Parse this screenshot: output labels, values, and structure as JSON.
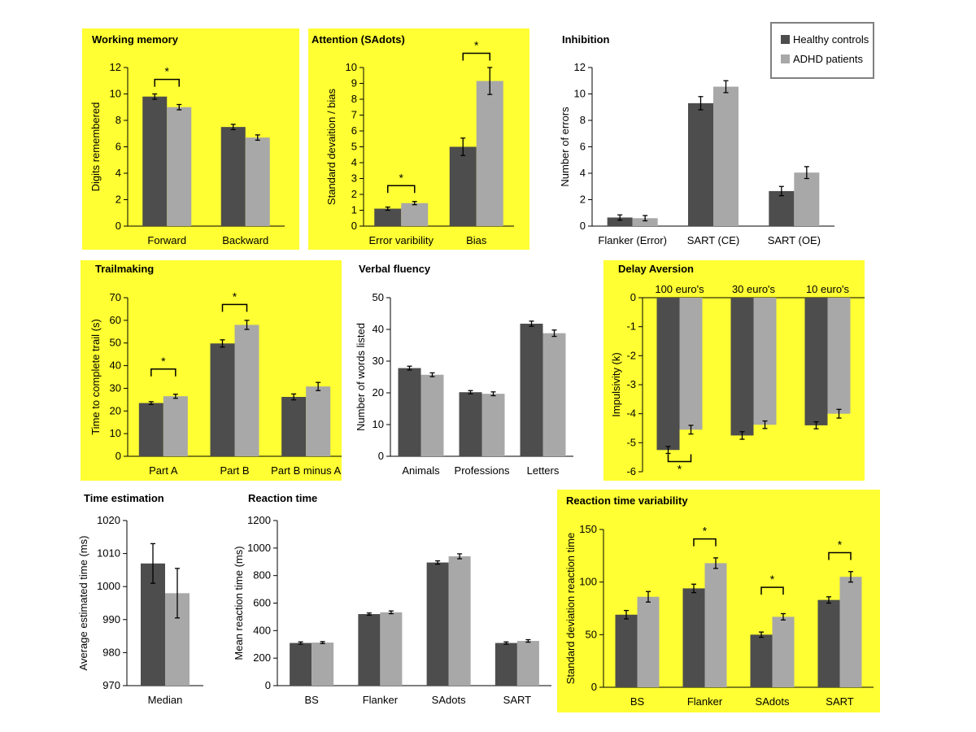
{
  "colors": {
    "healthy": "#4d4d4d",
    "adhd": "#a8a8a8",
    "highlight": "#ffff33",
    "axis": "#000000"
  },
  "legend": {
    "items": [
      {
        "label": "Healthy controls",
        "color": "#4d4d4d"
      },
      {
        "label": "ADHD patients",
        "color": "#a8a8a8"
      }
    ]
  },
  "chart_data": [
    {
      "id": "working-memory",
      "type": "bar",
      "title": "Working memory",
      "highlighted": true,
      "xlabel": "",
      "ylabel": "Digits remembered",
      "ylim": [
        0,
        12
      ],
      "yticks": [
        0,
        2,
        4,
        6,
        8,
        10,
        12
      ],
      "categories": [
        "Forward",
        "Backward"
      ],
      "series": [
        {
          "name": "Healthy controls",
          "values": [
            9.8,
            7.5
          ],
          "errors": [
            0.2,
            0.2
          ]
        },
        {
          "name": "ADHD patients",
          "values": [
            9.0,
            6.7
          ],
          "errors": [
            0.2,
            0.2
          ]
        }
      ],
      "significance": [
        {
          "category": 0,
          "label": "*",
          "y": 11.1
        }
      ]
    },
    {
      "id": "attention",
      "type": "bar",
      "title": "Attention (SAdots)",
      "highlighted": true,
      "xlabel": "",
      "ylabel": "Standard devaition / bias",
      "ylim": [
        0,
        10
      ],
      "yticks": [
        0,
        1,
        2,
        3,
        4,
        5,
        6,
        7,
        8,
        9,
        10
      ],
      "categories": [
        "Error varibility",
        "Bias"
      ],
      "series": [
        {
          "name": "Healthy controls",
          "values": [
            1.1,
            5.0
          ],
          "errors": [
            0.1,
            0.55
          ]
        },
        {
          "name": "ADHD patients",
          "values": [
            1.45,
            9.15
          ],
          "errors": [
            0.1,
            0.85
          ]
        }
      ],
      "significance": [
        {
          "category": 0,
          "label": "*",
          "y": 2.55
        },
        {
          "category": 1,
          "label": "*",
          "y": 10.9
        }
      ]
    },
    {
      "id": "inhibition",
      "type": "bar",
      "title": "Inhibition",
      "highlighted": false,
      "xlabel": "",
      "ylabel": "Number of errors",
      "ylim": [
        0,
        12
      ],
      "yticks": [
        0,
        2,
        4,
        6,
        8,
        10,
        12
      ],
      "categories": [
        "Flanker (Error)",
        "SART (CE)",
        "SART (OE)"
      ],
      "series": [
        {
          "name": "Healthy controls",
          "values": [
            0.65,
            9.3,
            2.65
          ],
          "errors": [
            0.2,
            0.5,
            0.35
          ]
        },
        {
          "name": "ADHD patients",
          "values": [
            0.6,
            10.55,
            4.05
          ],
          "errors": [
            0.2,
            0.45,
            0.45
          ]
        }
      ],
      "significance": []
    },
    {
      "id": "trailmaking",
      "type": "bar",
      "title": "Trailmaking",
      "highlighted": true,
      "xlabel": "",
      "ylabel": "Time to complete trail (s)",
      "ylim": [
        0,
        70
      ],
      "yticks": [
        0,
        10,
        20,
        30,
        40,
        50,
        60,
        70
      ],
      "categories": [
        "Part A",
        "Part B",
        "Part B  minus A"
      ],
      "series": [
        {
          "name": "Healthy controls",
          "values": [
            23.5,
            49.8,
            26.2
          ],
          "errors": [
            0.6,
            1.6,
            1.3
          ]
        },
        {
          "name": "ADHD patients",
          "values": [
            26.5,
            58.0,
            30.8
          ],
          "errors": [
            0.9,
            2.0,
            1.8
          ]
        }
      ],
      "significance": [
        {
          "category": 0,
          "label": "*",
          "y": 38.5
        },
        {
          "category": 1,
          "label": "*",
          "y": 67
        }
      ]
    },
    {
      "id": "verbal-fluency",
      "type": "bar",
      "title": "Verbal fluency",
      "highlighted": false,
      "xlabel": "",
      "ylabel": "Number of words listed",
      "ylim": [
        0,
        50
      ],
      "yticks": [
        0,
        10,
        20,
        30,
        40,
        50
      ],
      "categories": [
        "Animals",
        "Professions",
        "Letters"
      ],
      "series": [
        {
          "name": "Healthy controls",
          "values": [
            27.8,
            20.2,
            41.8
          ],
          "errors": [
            0.6,
            0.5,
            0.8
          ]
        },
        {
          "name": "ADHD patients",
          "values": [
            25.7,
            19.7,
            38.8
          ],
          "errors": [
            0.6,
            0.6,
            1.0
          ]
        }
      ],
      "significance": []
    },
    {
      "id": "delay-aversion",
      "type": "bar",
      "title": "Delay Aversion",
      "highlighted": true,
      "xlabel": "",
      "ylabel": "Impulsivity (k)",
      "ylim": [
        -6,
        0
      ],
      "yticks": [
        0,
        -1,
        -2,
        -3,
        -4,
        -5,
        -6
      ],
      "categories": [
        "100 euro's",
        "30 euro's",
        "10 euro's"
      ],
      "category_position": "top",
      "series": [
        {
          "name": "Healthy controls",
          "values": [
            -5.25,
            -4.75,
            -4.4
          ],
          "errors": [
            0.12,
            0.13,
            0.12
          ]
        },
        {
          "name": "ADHD patients",
          "values": [
            -4.55,
            -4.38,
            -4.0
          ],
          "errors": [
            0.15,
            0.13,
            0.15
          ]
        }
      ],
      "significance": [
        {
          "category": 0,
          "label": "*",
          "y": -5.65
        }
      ]
    },
    {
      "id": "time-estimation",
      "type": "bar",
      "title": "Time estimation",
      "highlighted": false,
      "xlabel": "",
      "ylabel": "Average estimated time (ms)",
      "ylim": [
        970,
        1020
      ],
      "yticks": [
        970,
        980,
        990,
        1000,
        1010,
        1020
      ],
      "categories": [
        "Median"
      ],
      "series": [
        {
          "name": "Healthy controls",
          "values": [
            1007
          ],
          "errors": [
            6
          ]
        },
        {
          "name": "ADHD patients",
          "values": [
            998
          ],
          "errors": [
            7.5
          ]
        }
      ],
      "significance": []
    },
    {
      "id": "reaction-time",
      "type": "bar",
      "title": "Reaction time",
      "highlighted": false,
      "xlabel": "",
      "ylabel": "Mean reaction time (ms)",
      "ylim": [
        0,
        1200
      ],
      "yticks": [
        0,
        200,
        400,
        600,
        800,
        1000,
        1200
      ],
      "categories": [
        "BS",
        "Flanker",
        "SAdots",
        "SART"
      ],
      "series": [
        {
          "name": "Healthy controls",
          "values": [
            310,
            520,
            895,
            310
          ],
          "errors": [
            8,
            8,
            12,
            8
          ]
        },
        {
          "name": "ADHD patients",
          "values": [
            313,
            533,
            940,
            325
          ],
          "errors": [
            7,
            10,
            18,
            9
          ]
        }
      ],
      "significance": []
    },
    {
      "id": "rt-variability",
      "type": "bar",
      "title": "Reaction time variability",
      "highlighted": true,
      "xlabel": "",
      "ylabel": "Standard deviation reaction time",
      "ylim": [
        0,
        150
      ],
      "yticks": [
        0,
        50,
        100,
        150
      ],
      "categories": [
        "BS",
        "Flanker",
        "SAdots",
        "SART"
      ],
      "series": [
        {
          "name": "Healthy controls",
          "values": [
            69,
            94,
            50,
            83
          ],
          "errors": [
            4,
            4,
            2.5,
            3
          ]
        },
        {
          "name": "ADHD patients",
          "values": [
            86,
            118,
            67,
            105
          ],
          "errors": [
            5,
            5,
            3,
            5
          ]
        }
      ],
      "significance": [
        {
          "category": 1,
          "label": "*",
          "y": 141
        },
        {
          "category": 2,
          "label": "*",
          "y": 95
        },
        {
          "category": 3,
          "label": "*",
          "y": 128
        }
      ]
    }
  ]
}
